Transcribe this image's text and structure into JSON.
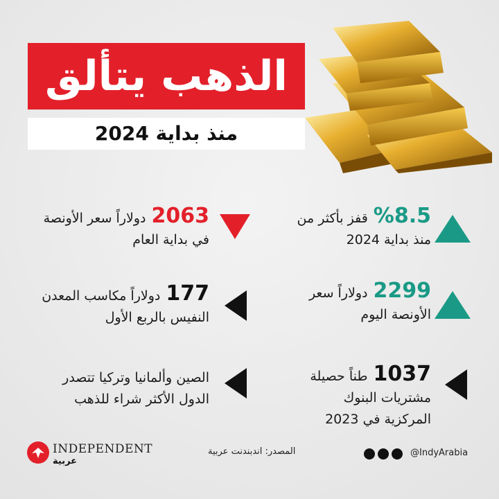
{
  "header": {
    "title": "الذهب يتألق",
    "subtitle": "منذ بداية 2024"
  },
  "stats": [
    {
      "number": "%8.5",
      "text": "قفز بأكثر من",
      "line2": "منذ بداية 2024"
    },
    {
      "number": "2299",
      "text": "دولاراً سعر",
      "line2": "الأونصة اليوم"
    },
    {
      "number": "1037",
      "text": "طناً حصيلة",
      "line2": "مشتريات البنوك",
      "line3": "المركزية في 2023"
    },
    {
      "number": "2063",
      "text": "دولاراً سعر الأونصة",
      "line2": "في بداية العام"
    },
    {
      "number": "177",
      "text": "دولاراً مكاسب المعدن",
      "line2": "النفيس بالربع الأول"
    },
    {
      "text": "الصين وألمانيا وتركيا تتصدر",
      "line2": "الدول الأكثر شراء للذهب"
    }
  ],
  "footer": {
    "logo": "INDEPENDENT",
    "logo_sub": "عربية",
    "source": "المصدر: اندبندنت عربية",
    "handle": "@IndyArabia"
  }
}
